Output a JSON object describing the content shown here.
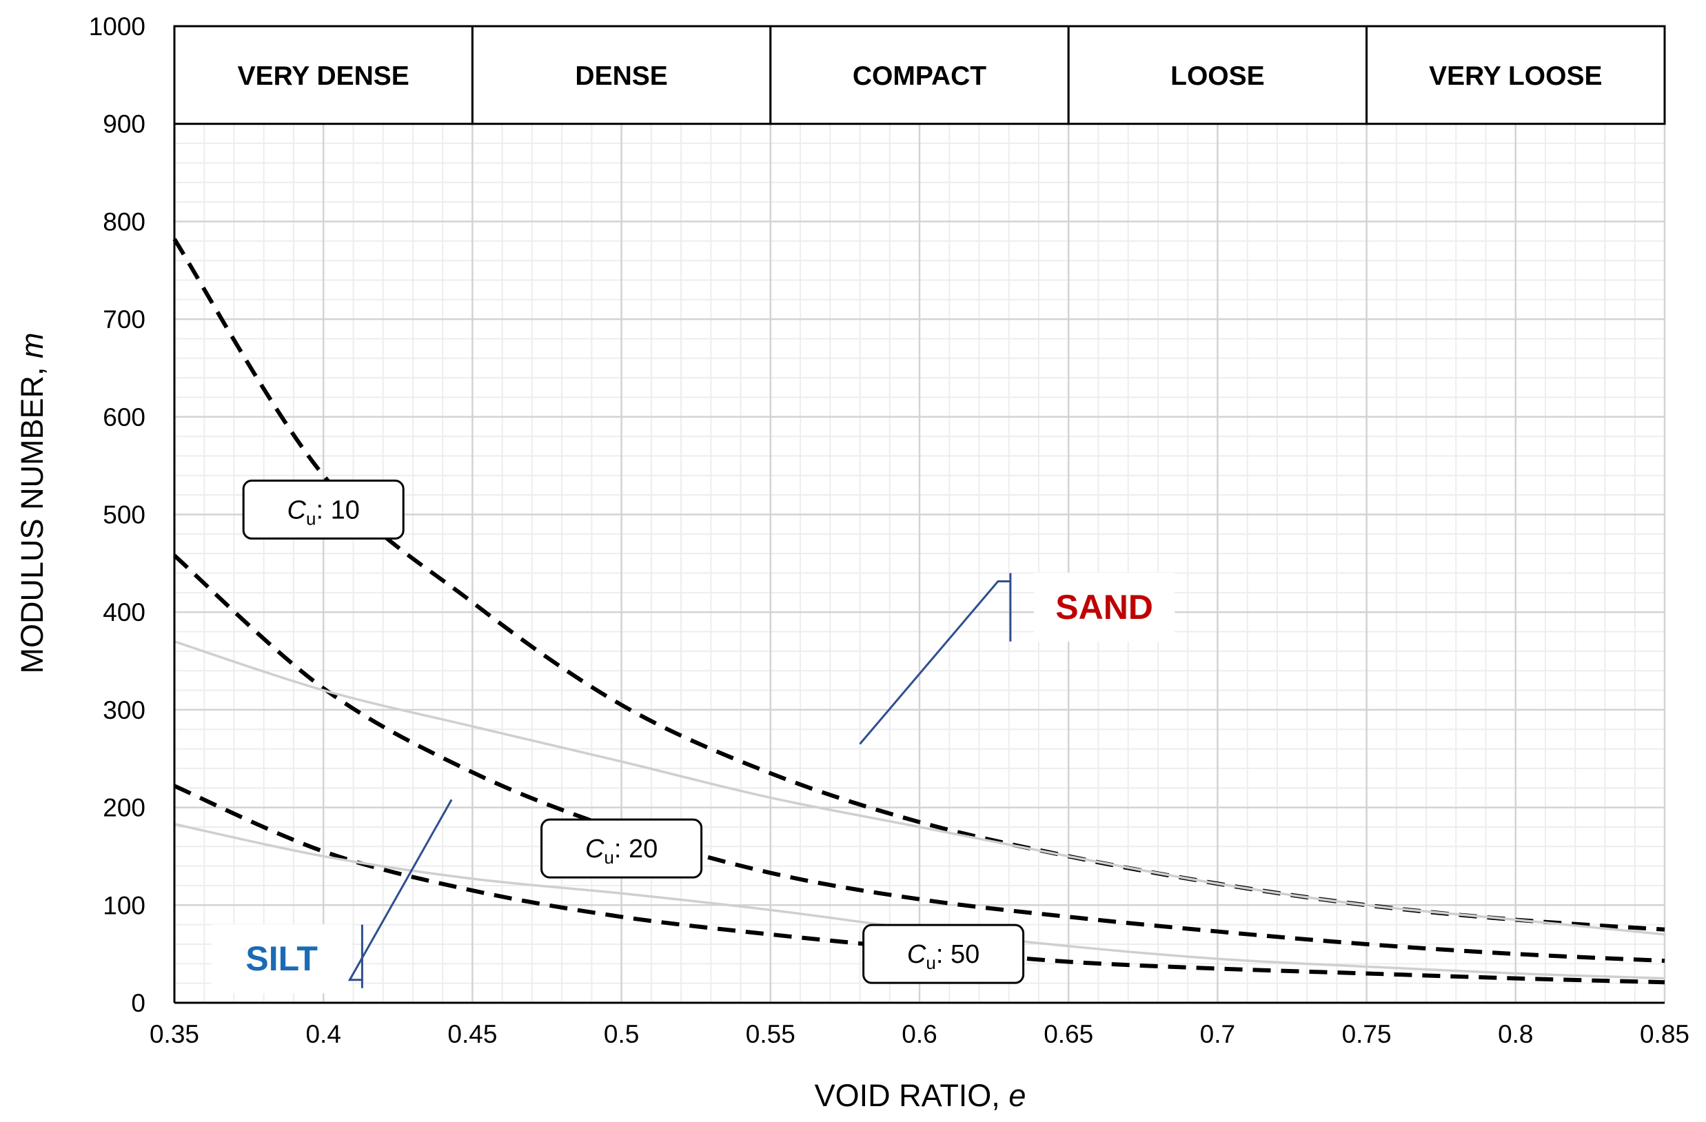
{
  "chart_data": {
    "type": "line",
    "title": "",
    "xlabel": "VOID RATIO,",
    "xlabel_var": "e",
    "ylabel": "MODULUS NUMBER,",
    "ylabel_var": "m",
    "xlim": [
      0.35,
      0.85
    ],
    "ylim": [
      0,
      1000
    ],
    "x_ticks": [
      0.35,
      0.4,
      0.45,
      0.5,
      0.55,
      0.6,
      0.65,
      0.7,
      0.75,
      0.8,
      0.85
    ],
    "x_tick_labels": [
      "0.35",
      "0.4",
      "0.45",
      "0.5",
      "0.55",
      "0.6",
      "0.65",
      "0.7",
      "0.75",
      "0.8",
      "0.85"
    ],
    "y_ticks": [
      0,
      100,
      200,
      300,
      400,
      500,
      600,
      700,
      800,
      900,
      1000
    ],
    "y_tick_labels": [
      "0",
      "100",
      "200",
      "300",
      "400",
      "500",
      "600",
      "700",
      "800",
      "900",
      "1000"
    ],
    "grid": "major and minor",
    "density_bands": [
      {
        "label": "VERY DENSE",
        "x_from": 0.35,
        "x_to": 0.45
      },
      {
        "label": "DENSE",
        "x_from": 0.45,
        "x_to": 0.55
      },
      {
        "label": "COMPACT",
        "x_from": 0.55,
        "x_to": 0.65
      },
      {
        "label": "LOOSE",
        "x_from": 0.65,
        "x_to": 0.75
      },
      {
        "label": "VERY LOOSE",
        "x_from": 0.75,
        "x_to": 0.85
      }
    ],
    "density_band_y_range": [
      900,
      1000
    ],
    "series": [
      {
        "style": "dashed",
        "color": "#000000",
        "x": [
          0.35,
          0.4,
          0.45,
          0.5,
          0.55,
          0.6,
          0.65,
          0.7,
          0.75,
          0.8,
          0.85
        ],
        "y": [
          782,
          540,
          410,
          305,
          235,
          185,
          150,
          122,
          100,
          85,
          75
        ]
      },
      {
        "style": "dashed",
        "color": "#000000",
        "x": [
          0.35,
          0.4,
          0.45,
          0.5,
          0.55,
          0.6,
          0.65,
          0.7,
          0.75,
          0.8,
          0.85
        ],
        "y": [
          458,
          322,
          236,
          176,
          133,
          106,
          88,
          73,
          60,
          50,
          43
        ]
      },
      {
        "style": "dashed",
        "color": "#000000",
        "x": [
          0.35,
          0.4,
          0.45,
          0.5,
          0.55,
          0.6,
          0.65,
          0.7,
          0.75,
          0.8,
          0.85
        ],
        "y": [
          222,
          155,
          115,
          88,
          70,
          55,
          42,
          35,
          30,
          25,
          21
        ]
      },
      {
        "style": "solid",
        "color": "#cfcfcf",
        "x": [
          0.35,
          0.4,
          0.45,
          0.5,
          0.55,
          0.6,
          0.65,
          0.7,
          0.75,
          0.8,
          0.85
        ],
        "y": [
          370,
          320,
          283,
          247,
          210,
          180,
          150,
          122,
          100,
          85,
          70
        ]
      },
      {
        "style": "solid",
        "color": "#cfcfcf",
        "x": [
          0.35,
          0.4,
          0.45,
          0.5,
          0.55,
          0.6,
          0.65,
          0.7,
          0.75,
          0.8,
          0.85
        ],
        "y": [
          183,
          150,
          127,
          112,
          95,
          75,
          58,
          45,
          37,
          30,
          25
        ]
      }
    ],
    "callouts": [
      {
        "var": "C",
        "sub": "u",
        "text": ": 10",
        "x": 0.4,
        "y": 505
      },
      {
        "var": "C",
        "sub": "u",
        "text": ": 20",
        "x": 0.5,
        "y": 158
      },
      {
        "var": "C",
        "sub": "u",
        "text": ": 50",
        "x": 0.608,
        "y": 50
      }
    ],
    "bracket_labels": [
      {
        "label": "SAND",
        "color": "#c00000",
        "x": 0.662,
        "y": 405,
        "bracket_x": 0.6305,
        "bracket_y_top": 440,
        "bracket_y_bottom": 370,
        "leader_x": 0.58,
        "leader_y": 265
      },
      {
        "label": "SILT",
        "color": "#1a6bb5",
        "x": 0.386,
        "y": 45,
        "bracket_x": 0.413,
        "bracket_y_top": 80,
        "bracket_y_bottom": 15,
        "leader_x": 0.443,
        "leader_y": 208
      }
    ],
    "bracket_line_color": "#2f4f8f"
  }
}
